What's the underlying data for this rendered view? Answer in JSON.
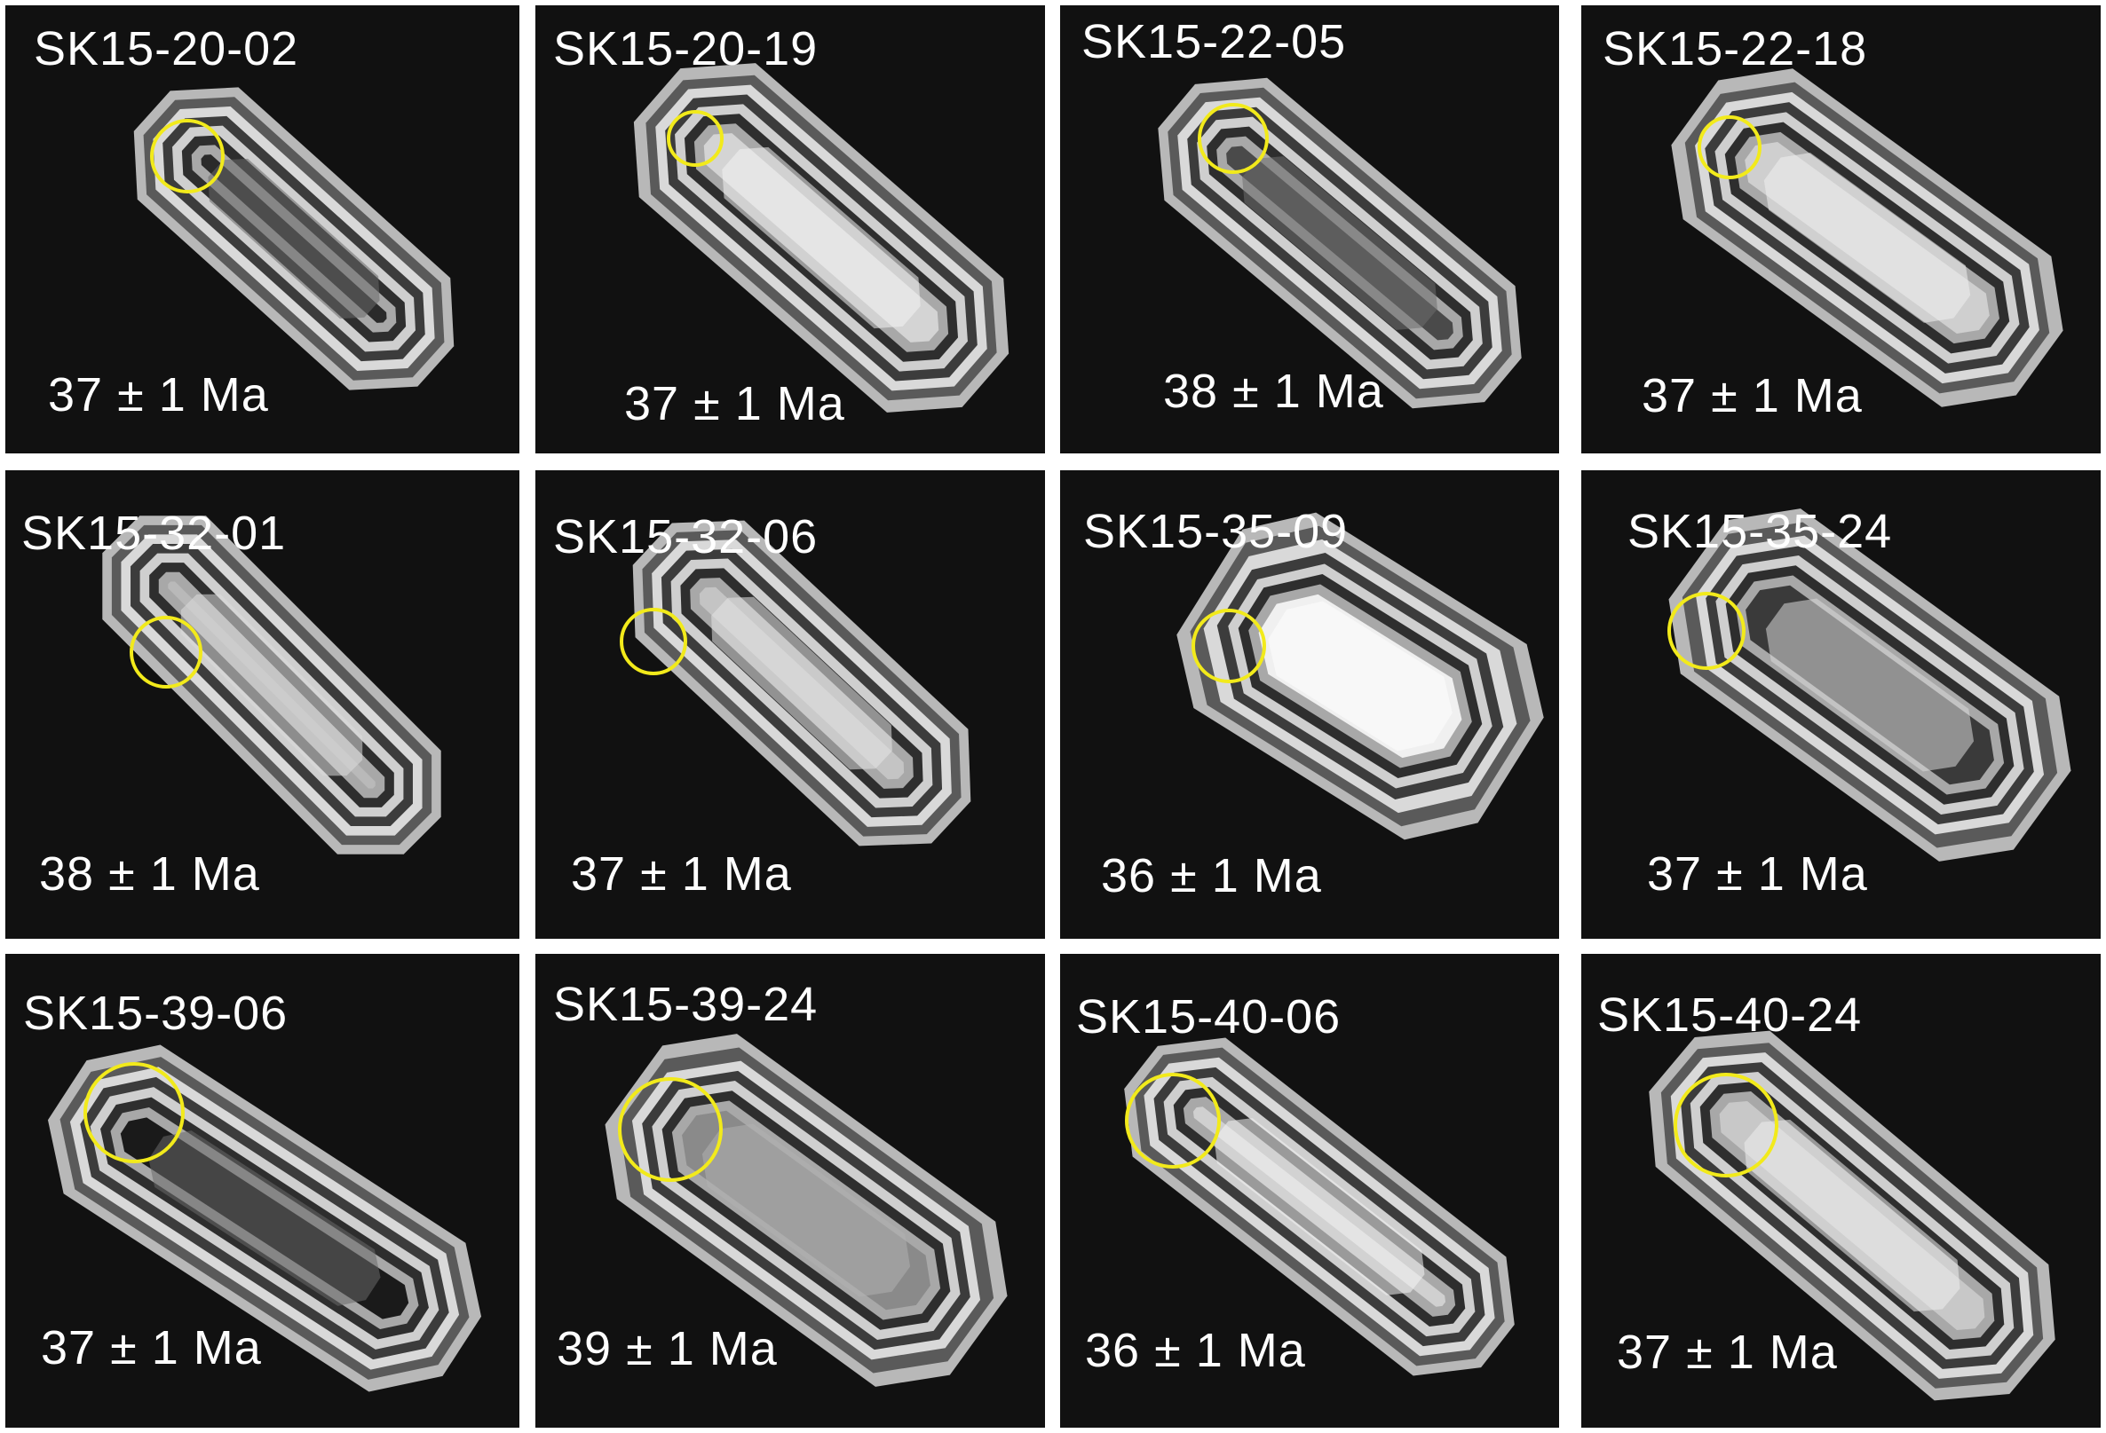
{
  "figure": {
    "spot_color": "#f2ea1b",
    "panels": [
      {
        "sample": "SK15-20-02",
        "age": "37 ± 1 Ma"
      },
      {
        "sample": "SK15-20-19",
        "age": "37 ± 1 Ma"
      },
      {
        "sample": "SK15-22-05",
        "age": "38 ± 1 Ma"
      },
      {
        "sample": "SK15-22-18",
        "age": "37 ± 1 Ma"
      },
      {
        "sample": "SK15-32-01",
        "age": "38 ± 1 Ma"
      },
      {
        "sample": "SK15-32-06",
        "age": "37 ± 1 Ma"
      },
      {
        "sample": "SK15-35-09",
        "age": "36 ± 1 Ma"
      },
      {
        "sample": "SK15-35-24",
        "age": "37 ± 1 Ma"
      },
      {
        "sample": "SK15-39-06",
        "age": "37 ± 1 Ma"
      },
      {
        "sample": "SK15-39-24",
        "age": "39 ± 1 Ma"
      },
      {
        "sample": "SK15-40-06",
        "age": "36 ± 1 Ma"
      },
      {
        "sample": "SK15-40-24",
        "age": "37 ± 1 Ma"
      }
    ]
  }
}
